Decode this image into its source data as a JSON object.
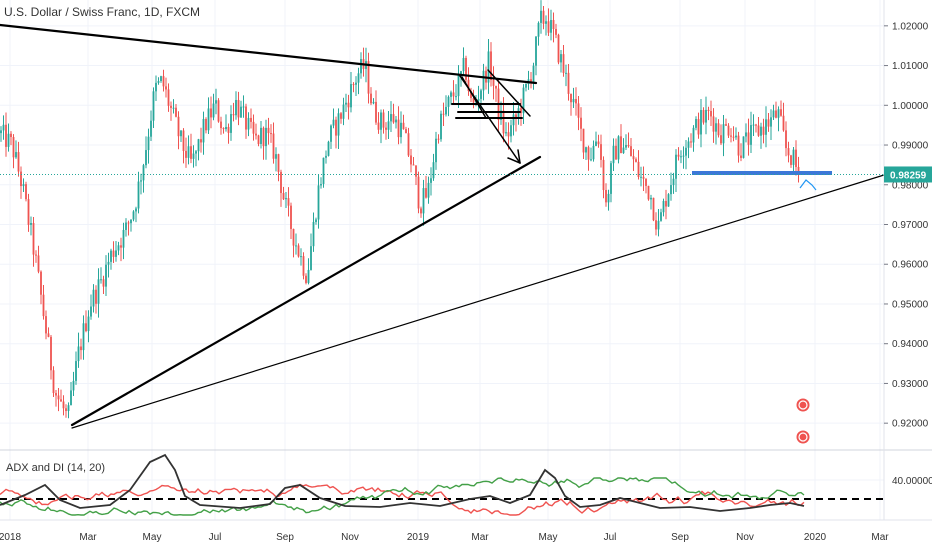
{
  "chart_data": {
    "type": "candlestick",
    "title": "U.S. Dollar / Swiss Franc, 1D, FXCM",
    "current_price": "0.98259",
    "y_ticks": [
      "1.02000",
      "1.01000",
      "1.00000",
      "0.99000",
      "0.98000",
      "0.97000",
      "0.96000",
      "0.95000",
      "0.94000",
      "0.93000",
      "0.92000"
    ],
    "y_tick_values": [
      1.02,
      1.01,
      1.0,
      0.99,
      0.98,
      0.97,
      0.96,
      0.95,
      0.94,
      0.93,
      0.92
    ],
    "ylim": [
      0.9135,
      1.0265
    ],
    "x_ticks": [
      "2018",
      "Mar",
      "May",
      "Jul",
      "Sep",
      "Nov",
      "2019",
      "Mar",
      "May",
      "Jul",
      "Sep",
      "Nov",
      "2020",
      "Mar"
    ],
    "price_path": [
      [
        0,
        0.993
      ],
      [
        12,
        0.99
      ],
      [
        22,
        0.98
      ],
      [
        35,
        0.962
      ],
      [
        45,
        0.945
      ],
      [
        55,
        0.928
      ],
      [
        68,
        0.921
      ],
      [
        78,
        0.937
      ],
      [
        90,
        0.95
      ],
      [
        100,
        0.955
      ],
      [
        112,
        0.963
      ],
      [
        125,
        0.968
      ],
      [
        135,
        0.975
      ],
      [
        145,
        0.988
      ],
      [
        155,
        1.004
      ],
      [
        162,
        1.006
      ],
      [
        172,
        0.998
      ],
      [
        182,
        0.99
      ],
      [
        192,
        0.985
      ],
      [
        205,
        0.995
      ],
      [
        215,
        1.0
      ],
      [
        225,
        0.993
      ],
      [
        235,
        1.001
      ],
      [
        245,
        0.996
      ],
      [
        255,
        0.991
      ],
      [
        265,
        0.993
      ],
      [
        275,
        0.988
      ],
      [
        285,
        0.975
      ],
      [
        295,
        0.966
      ],
      [
        307,
        0.957
      ],
      [
        318,
        0.978
      ],
      [
        328,
        0.991
      ],
      [
        338,
        0.996
      ],
      [
        348,
        1.002
      ],
      [
        358,
        1.008
      ],
      [
        365,
        1.01
      ],
      [
        373,
        0.999
      ],
      [
        383,
        0.995
      ],
      [
        393,
        0.997
      ],
      [
        403,
        0.993
      ],
      [
        412,
        0.985
      ],
      [
        420,
        0.975
      ],
      [
        428,
        0.978
      ],
      [
        438,
        0.994
      ],
      [
        448,
        1.0
      ],
      [
        458,
        1.005
      ],
      [
        465,
        1.01
      ],
      [
        472,
        0.999
      ],
      [
        480,
        1.004
      ],
      [
        489,
        1.011
      ],
      [
        498,
        0.999
      ],
      [
        506,
        0.992
      ],
      [
        515,
        0.996
      ],
      [
        525,
        1.003
      ],
      [
        533,
        1.01
      ],
      [
        540,
        1.021
      ],
      [
        546,
        1.022
      ],
      [
        553,
        1.018
      ],
      [
        560,
        1.012
      ],
      [
        568,
        1.005
      ],
      [
        575,
        0.999
      ],
      [
        582,
        0.992
      ],
      [
        590,
        0.987
      ],
      [
        598,
        0.993
      ],
      [
        606,
        0.975
      ],
      [
        614,
        0.988
      ],
      [
        622,
        0.991
      ],
      [
        630,
        0.988
      ],
      [
        640,
        0.982
      ],
      [
        650,
        0.978
      ],
      [
        658,
        0.969
      ],
      [
        665,
        0.976
      ],
      [
        672,
        0.982
      ],
      [
        680,
        0.989
      ],
      [
        690,
        0.992
      ],
      [
        700,
        0.996
      ],
      [
        710,
        0.998
      ],
      [
        720,
        0.993
      ],
      [
        730,
        0.995
      ],
      [
        740,
        0.989
      ],
      [
        750,
        0.992
      ],
      [
        760,
        0.994
      ],
      [
        770,
        0.996
      ],
      [
        778,
        0.998
      ],
      [
        786,
        0.989
      ],
      [
        792,
        0.987
      ],
      [
        798,
        0.983
      ]
    ],
    "indicator": {
      "name": "ADX and DI (14, 20)",
      "y_tick": "40.00000"
    },
    "colors": {
      "up": "#26a69a",
      "down": "#ef5350",
      "price_line": "#26a69a",
      "price_label_bg": "#26a69a"
    }
  }
}
